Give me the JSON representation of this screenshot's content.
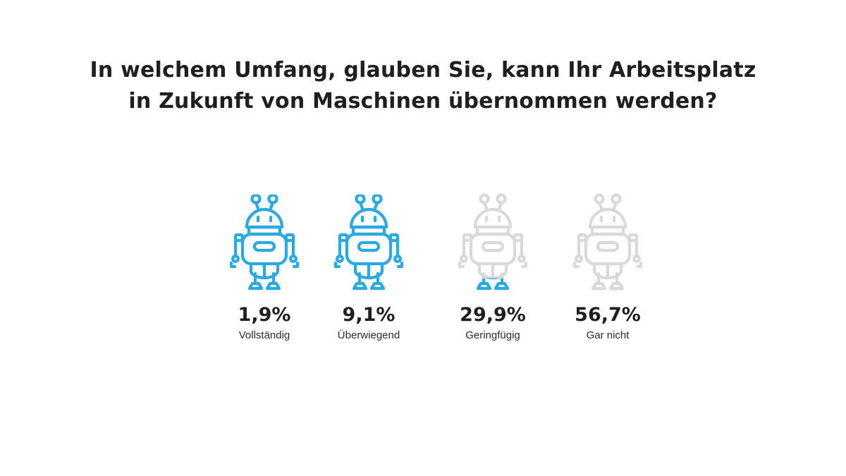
{
  "title_lines": [
    "In welchem Umfang, glauben Sie, kann Ihr Arbeitsplatz",
    "in Zukunft von Maschinen übernommen werden?"
  ],
  "colors": {
    "active": "#29aae1",
    "inactive": "#d9d9d9"
  },
  "icon": "robot-icon",
  "chart_data": {
    "type": "bar",
    "title": "In welchem Umfang, glauben Sie, kann Ihr Arbeitsplatz in Zukunft von Maschinen übernommen werden?",
    "categories": [
      "Vollständig",
      "Überwiegend",
      "Geringfügig",
      "Gar nicht"
    ],
    "values": [
      1.9,
      9.1,
      29.9,
      56.7
    ],
    "value_labels": [
      "1,9%",
      "9,1%",
      "29,9%",
      "56,7%"
    ],
    "fill_fractions": [
      1.0,
      1.0,
      0.12,
      0.0
    ],
    "unit": "%",
    "grid": false,
    "legend": "none"
  }
}
